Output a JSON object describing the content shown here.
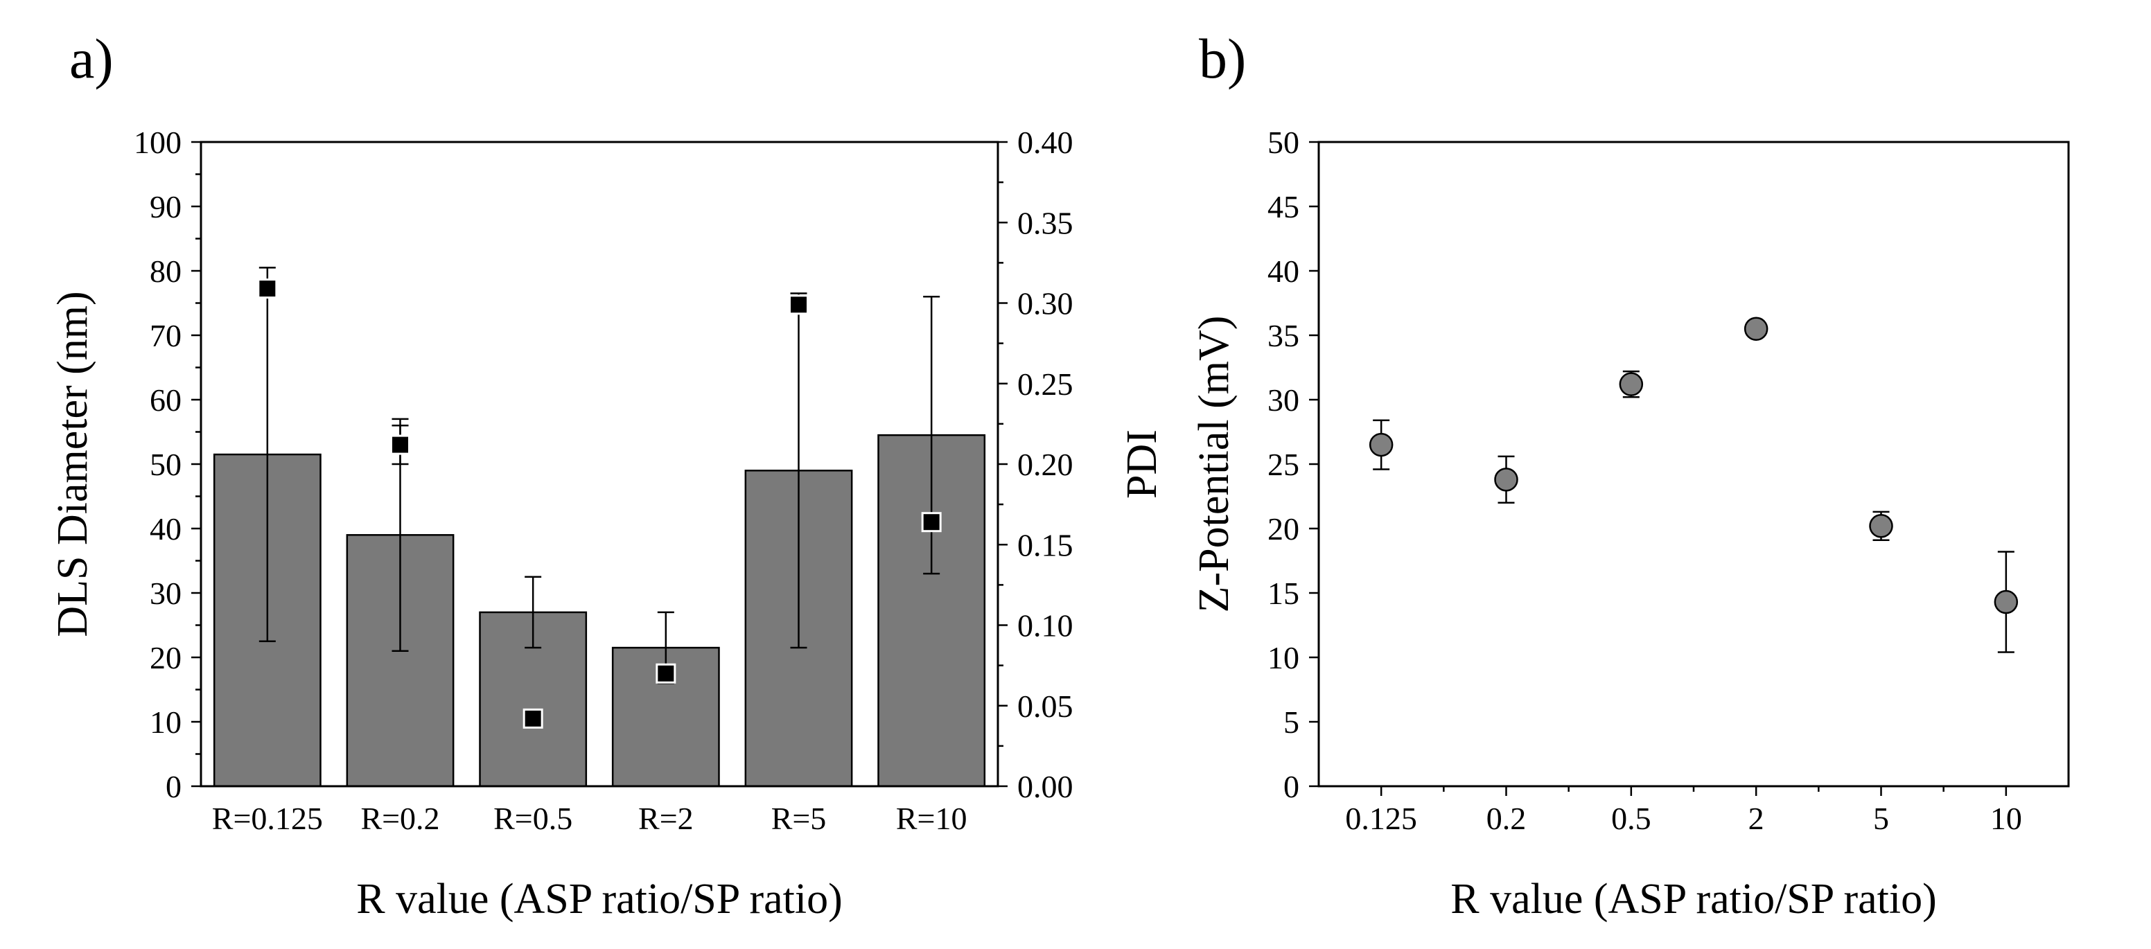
{
  "chart_data": [
    {
      "type": "bar",
      "panel_label": "a)",
      "title": "",
      "xlabel": "R value (ASP ratio/SP ratio)",
      "ylabel": "DLS Diameter (nm)",
      "y2label": "PDI",
      "categories": [
        "R=0.125",
        "R=0.2",
        "R=0.5",
        "R=2",
        "R=5",
        "R=10"
      ],
      "ylim": [
        0,
        100
      ],
      "yticks": [
        "0",
        "10",
        "20",
        "30",
        "40",
        "50",
        "60",
        "70",
        "80",
        "90",
        "100"
      ],
      "y2lim": [
        0,
        0.4
      ],
      "y2ticks": [
        "0.00",
        "0.05",
        "0.10",
        "0.15",
        "0.20",
        "0.25",
        "0.30",
        "0.35",
        "0.40"
      ],
      "grid": false,
      "series": [
        {
          "name": "DLS Diameter",
          "axis": "left",
          "kind": "bar",
          "color": "#7a7a7a",
          "values": [
            51.5,
            39,
            27,
            21.5,
            49,
            54.5
          ],
          "errors": [
            29,
            18,
            5.5,
            5.5,
            27.5,
            21.5
          ]
        },
        {
          "name": "PDI",
          "axis": "right",
          "kind": "square-marker",
          "color": "#000000",
          "values": [
            0.309,
            0.212,
            0.042,
            0.07,
            0.299,
            0.164
          ],
          "errors": [
            0.003,
            0.012,
            0.0,
            0.004,
            0.0,
            0.0
          ]
        }
      ]
    },
    {
      "type": "scatter",
      "panel_label": "b)",
      "title": "",
      "xlabel": "R value (ASP ratio/SP ratio)",
      "ylabel": "Z-Potential (mV)",
      "categories": [
        "0.125",
        "0.2",
        "0.5",
        "2",
        "5",
        "10"
      ],
      "ylim": [
        0,
        50
      ],
      "yticks": [
        "0",
        "5",
        "10",
        "15",
        "20",
        "25",
        "30",
        "35",
        "40",
        "45",
        "50"
      ],
      "grid": false,
      "series": [
        {
          "name": "Z-Potential",
          "kind": "circle-marker",
          "color": "#808080",
          "values": [
            26.5,
            23.8,
            31.2,
            35.5,
            20.2,
            14.3
          ],
          "errors": [
            1.9,
            1.8,
            1.0,
            0.6,
            1.1,
            3.9
          ]
        }
      ]
    }
  ]
}
